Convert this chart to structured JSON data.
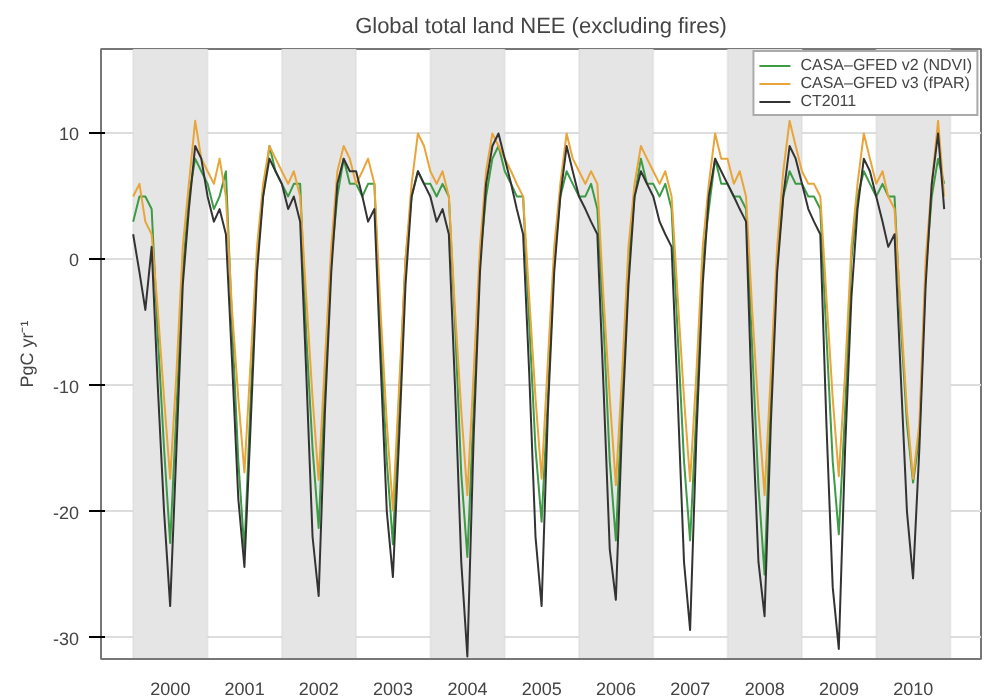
{
  "chart_data": {
    "type": "line",
    "title": "Global total land NEE (excluding fires)",
    "ylabel": "PgC yr⁻¹",
    "x": [
      "2000-01",
      "2000-02",
      "2000-03",
      "2000-04",
      "2000-05",
      "2000-06",
      "2000-07",
      "2000-08",
      "2000-09",
      "2000-10",
      "2000-11",
      "2000-12",
      "2001-01",
      "2001-02",
      "2001-03",
      "2001-04",
      "2001-05",
      "2001-06",
      "2001-07",
      "2001-08",
      "2001-09",
      "2001-10",
      "2001-11",
      "2001-12",
      "2002-01",
      "2002-02",
      "2002-03",
      "2002-04",
      "2002-05",
      "2002-06",
      "2002-07",
      "2002-08",
      "2002-09",
      "2002-10",
      "2002-11",
      "2002-12",
      "2003-01",
      "2003-02",
      "2003-03",
      "2003-04",
      "2003-05",
      "2003-06",
      "2003-07",
      "2003-08",
      "2003-09",
      "2003-10",
      "2003-11",
      "2003-12",
      "2004-01",
      "2004-02",
      "2004-03",
      "2004-04",
      "2004-05",
      "2004-06",
      "2004-07",
      "2004-08",
      "2004-09",
      "2004-10",
      "2004-11",
      "2004-12",
      "2005-01",
      "2005-02",
      "2005-03",
      "2005-04",
      "2005-05",
      "2005-06",
      "2005-07",
      "2005-08",
      "2005-09",
      "2005-10",
      "2005-11",
      "2005-12",
      "2006-01",
      "2006-02",
      "2006-03",
      "2006-04",
      "2006-05",
      "2006-06",
      "2006-07",
      "2006-08",
      "2006-09",
      "2006-10",
      "2006-11",
      "2006-12",
      "2007-01",
      "2007-02",
      "2007-03",
      "2007-04",
      "2007-05",
      "2007-06",
      "2007-07",
      "2007-08",
      "2007-09",
      "2007-10",
      "2007-11",
      "2007-12",
      "2008-01",
      "2008-02",
      "2008-03",
      "2008-04",
      "2008-05",
      "2008-06",
      "2008-07",
      "2008-08",
      "2008-09",
      "2008-10",
      "2008-11",
      "2008-12",
      "2009-01",
      "2009-02",
      "2009-03",
      "2009-04",
      "2009-05",
      "2009-06",
      "2009-07",
      "2009-08",
      "2009-09",
      "2009-10",
      "2009-11",
      "2009-12",
      "2010-01",
      "2010-02",
      "2010-03",
      "2010-04",
      "2010-05",
      "2010-06",
      "2010-07",
      "2010-08",
      "2010-09",
      "2010-10",
      "2010-11",
      "2010-12"
    ],
    "series": [
      {
        "name": "CASA–GFED v2 (NDVI)",
        "color": "#3d9a45",
        "values": [
          3,
          5,
          5,
          4,
          -6,
          -15,
          -22.5,
          -12,
          -1,
          5,
          8,
          7,
          6,
          4,
          5,
          7,
          -5,
          -16,
          -23.1,
          -11,
          0,
          5,
          9,
          7,
          6,
          5,
          6,
          6,
          -6,
          -15,
          -21.3,
          -10,
          0,
          5,
          8,
          6,
          6,
          5,
          6,
          6,
          -6,
          -16,
          -22.6,
          -11,
          0,
          5,
          7,
          6,
          6,
          5,
          6,
          5,
          -5,
          -17,
          -23.6,
          -12,
          0,
          5,
          8,
          9,
          7,
          6,
          5,
          5,
          -5,
          -15,
          -20.8,
          -11,
          0,
          5,
          7,
          6,
          5,
          5,
          6,
          4,
          -5,
          -16,
          -22.3,
          -11,
          0,
          5,
          8,
          6,
          6,
          5,
          6,
          4,
          -6,
          -16,
          -22.3,
          -12,
          0,
          4,
          8,
          6,
          6,
          5,
          5,
          4,
          -7,
          -18,
          -25,
          -11,
          0,
          5,
          7,
          6,
          6,
          5,
          5,
          4,
          -6,
          -16,
          -21.8,
          -12,
          0,
          5,
          7,
          6,
          5,
          6,
          5,
          5,
          -5,
          -13,
          -17.7,
          -14,
          -1,
          5,
          8,
          6
        ]
      },
      {
        "name": "CASA–GFED v3 (fPAR)",
        "color": "#e8a53a",
        "values": [
          5,
          6,
          3,
          2,
          -4,
          -11,
          -17.4,
          -9,
          1,
          6,
          11,
          8,
          7,
          6,
          8,
          5,
          -4,
          -11,
          -16.9,
          -8,
          1,
          6,
          9,
          8,
          7,
          6,
          7,
          5,
          -3,
          -11,
          -17.5,
          -8,
          1,
          7,
          9,
          8,
          6,
          7,
          8,
          6,
          -4,
          -13,
          -19.9,
          -10,
          0,
          6,
          10,
          9,
          7,
          6,
          7,
          5,
          -4,
          -12,
          -18.7,
          -9,
          1,
          7,
          10,
          9,
          8,
          7,
          6,
          5,
          -3,
          -11,
          -17.4,
          -8,
          1,
          6,
          10,
          8,
          7,
          6,
          7,
          6,
          -3,
          -11,
          -17.9,
          -9,
          1,
          6,
          9,
          8,
          7,
          6,
          7,
          5,
          -3,
          -11,
          -17.6,
          -9,
          1,
          6,
          10,
          8,
          8,
          6,
          7,
          5,
          -4,
          -12,
          -18.7,
          -9,
          1,
          7,
          11,
          9,
          7,
          6,
          6,
          5,
          -3,
          -11,
          -17.2,
          -9,
          1,
          6,
          10,
          8,
          6,
          7,
          5,
          4,
          -4,
          -12,
          -17.4,
          -13,
          0,
          6,
          11,
          5
        ]
      },
      {
        "name": "CT2011",
        "color": "#333333",
        "values": [
          2,
          -1,
          -4,
          1,
          -10,
          -20,
          -27.5,
          -15,
          -2,
          4,
          9,
          8,
          5,
          3,
          4,
          2,
          -8,
          -19,
          -24.4,
          -13,
          -1,
          5,
          8,
          7,
          6,
          4,
          5,
          3,
          -9,
          -22,
          -26.7,
          -12,
          -1,
          6,
          8,
          7,
          7,
          5,
          3,
          4,
          -8,
          -20,
          -25.2,
          -14,
          -2,
          5,
          7,
          6,
          5,
          3,
          4,
          2,
          -10,
          -24,
          -31.5,
          -14,
          -1,
          6,
          9,
          10,
          8,
          6,
          4,
          2,
          -9,
          -22,
          -27.5,
          -12,
          -1,
          5,
          9,
          7,
          5,
          4,
          3,
          2,
          -10,
          -23,
          -27,
          -13,
          -2,
          5,
          7,
          6,
          5,
          3,
          2,
          1,
          -11,
          -24,
          -29.4,
          -14,
          -2,
          5,
          8,
          7,
          6,
          5,
          4,
          3,
          -12,
          -24,
          -28.3,
          -13,
          -1,
          5,
          9,
          8,
          6,
          4,
          3,
          2,
          -13,
          -26,
          -30.9,
          -15,
          -3,
          4,
          8,
          7,
          5,
          3,
          1,
          2,
          -9,
          -20,
          -25.3,
          -15,
          -2,
          6,
          10,
          4
        ]
      }
    ],
    "xlim": [
      "1999-07-27",
      "2011-05-31"
    ],
    "xticks": [
      {
        "value": "2000-07-02",
        "label": "2000"
      },
      {
        "value": "2001-07-02",
        "label": "2001"
      },
      {
        "value": "2002-07-02",
        "label": "2002"
      },
      {
        "value": "2003-07-02",
        "label": "2003"
      },
      {
        "value": "2004-07-02",
        "label": "2004"
      },
      {
        "value": "2005-07-02",
        "label": "2005"
      },
      {
        "value": "2006-07-02",
        "label": "2006"
      },
      {
        "value": "2007-07-02",
        "label": "2007"
      },
      {
        "value": "2008-07-02",
        "label": "2008"
      },
      {
        "value": "2009-07-02",
        "label": "2009"
      },
      {
        "value": "2010-07-02",
        "label": "2010"
      }
    ],
    "ylim": [
      -31.7,
      16.7
    ],
    "yticks": [
      -30,
      -20,
      -10,
      0,
      10
    ],
    "bands": [
      {
        "axis": "x",
        "from": "2000-01-01",
        "to": "2001-01-01",
        "color": "#e5e5e5"
      },
      {
        "axis": "x",
        "from": "2002-01-01",
        "to": "2003-01-01",
        "color": "#e5e5e5"
      },
      {
        "axis": "x",
        "from": "2004-01-01",
        "to": "2005-01-01",
        "color": "#e5e5e5"
      },
      {
        "axis": "x",
        "from": "2006-01-01",
        "to": "2007-01-01",
        "color": "#e5e5e5"
      },
      {
        "axis": "x",
        "from": "2008-01-01",
        "to": "2009-01-01",
        "color": "#e5e5e5"
      },
      {
        "axis": "x",
        "from": "2010-01-01",
        "to": "2011-01-01",
        "color": "#e5e5e5"
      }
    ],
    "grid": "y",
    "legend": "top right",
    "line_style": "solid"
  }
}
